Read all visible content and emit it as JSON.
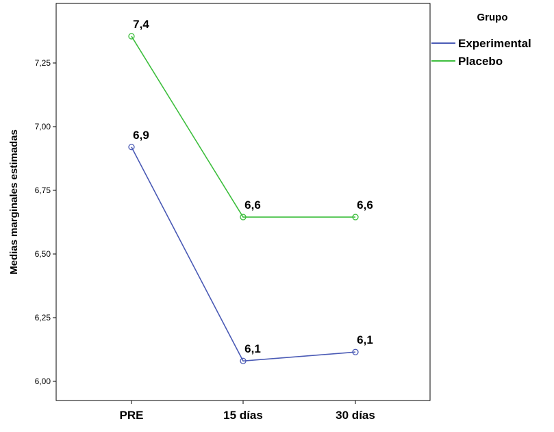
{
  "chart_data": {
    "type": "line",
    "title": "",
    "xlabel": "",
    "ylabel": "Medias marginales estimadas",
    "categories": [
      "PRE",
      "15 días",
      "30 días"
    ],
    "ylim": [
      5.95,
      7.45
    ],
    "yticks": [
      6.0,
      6.25,
      6.5,
      6.75,
      7.0,
      7.25
    ],
    "ytick_labels": [
      "6,00",
      "6,25",
      "6,50",
      "6,75",
      "7,00",
      "7,25"
    ],
    "grid": false,
    "legend": {
      "title": "Grupo",
      "position": "right-top"
    },
    "series": [
      {
        "name": "Experimental",
        "color": "#4A5AB5",
        "values": [
          6.92,
          6.08,
          6.115
        ],
        "labels": [
          "6,9",
          "6,1",
          "6,1"
        ]
      },
      {
        "name": "Placebo",
        "color": "#3DBE3D",
        "values": [
          7.355,
          6.645,
          6.645
        ],
        "labels": [
          "7,4",
          "6,6",
          "6,6"
        ]
      }
    ]
  }
}
